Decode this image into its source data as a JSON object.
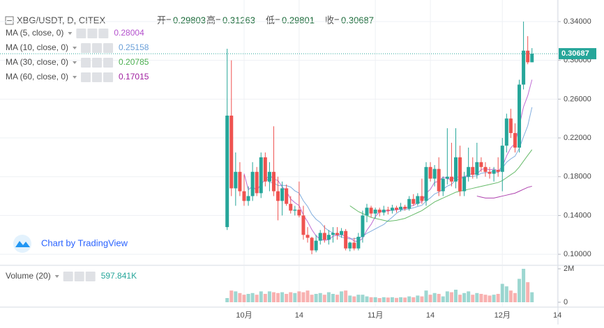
{
  "chart_data": {
    "type": "candlestick",
    "title": "XBG/USDT, D, CITEX",
    "ohlc_labels": [
      "开=",
      "高=",
      "低=",
      "收="
    ],
    "watermark": "Chart by TradingView",
    "up_color": "#26a69a",
    "down_color": "#ef5350",
    "grid": true,
    "categories": [
      null,
      null,
      null,
      null,
      "10月",
      null,
      null,
      null,
      null,
      null,
      null,
      null,
      null,
      null,
      null,
      null,
      null,
      "14",
      null,
      null,
      null,
      null,
      null,
      null,
      null,
      null,
      null,
      null,
      null,
      null,
      null,
      null,
      null,
      null,
      null,
      "11月",
      null,
      null,
      null,
      null,
      null,
      null,
      null,
      null,
      null,
      null,
      null,
      null,
      "14",
      null,
      null,
      null,
      null,
      null,
      null,
      null,
      null,
      null,
      null,
      null,
      null,
      null,
      null,
      null,
      null,
      "12月",
      null,
      null,
      null,
      null,
      null,
      null,
      null,
      null,
      null,
      null,
      null,
      null,
      "14"
    ],
    "open": [
      0.128,
      0.243,
      0.168,
      0.185,
      0.165,
      0.155,
      0.16,
      0.185,
      0.163,
      0.2,
      0.175,
      0.185,
      0.165,
      0.155,
      0.168,
      0.152,
      0.145,
      0.146,
      0.14,
      0.12,
      0.117,
      0.104,
      0.114,
      0.122,
      0.115,
      0.12,
      0.122,
      0.12,
      0.124,
      0.106,
      0.112,
      0.106,
      0.118,
      0.14,
      0.148,
      0.142,
      0.146,
      0.143,
      0.146,
      0.145,
      0.148,
      0.146,
      0.149,
      0.147,
      0.157,
      0.152,
      0.16,
      0.155,
      0.19,
      0.178,
      0.188,
      0.165,
      0.178,
      0.18,
      0.175,
      0.2,
      0.165,
      0.18,
      0.19,
      0.182,
      0.195,
      0.19,
      0.185,
      0.183,
      0.187,
      0.185,
      0.212,
      0.24,
      0.225,
      0.21,
      0.275,
      0.31,
      0.29803,
      null,
      null,
      null,
      null,
      null,
      null
    ],
    "high": [
      0.312,
      0.3,
      0.205,
      0.195,
      0.182,
      0.17,
      0.195,
      0.19,
      0.205,
      0.205,
      0.195,
      0.232,
      0.18,
      0.175,
      0.172,
      0.16,
      0.15,
      0.175,
      0.15,
      0.128,
      0.118,
      0.12,
      0.125,
      0.13,
      0.125,
      0.128,
      0.128,
      0.127,
      0.126,
      0.113,
      0.117,
      0.122,
      0.145,
      0.152,
      0.15,
      0.148,
      0.148,
      0.15,
      0.149,
      0.151,
      0.15,
      0.153,
      0.151,
      0.16,
      0.162,
      0.163,
      0.178,
      0.195,
      0.195,
      0.192,
      0.2,
      0.18,
      0.23,
      0.215,
      0.23,
      0.212,
      0.185,
      0.21,
      0.2,
      0.215,
      0.2,
      0.195,
      0.19,
      0.19,
      0.2,
      0.22,
      0.245,
      0.25,
      0.235,
      0.28,
      0.34,
      0.325,
      0.31263,
      null,
      null,
      null,
      null,
      null,
      null
    ],
    "low": [
      0.125,
      0.16,
      0.15,
      0.16,
      0.15,
      0.15,
      0.155,
      0.16,
      0.158,
      0.17,
      0.165,
      0.16,
      0.135,
      0.14,
      0.15,
      0.142,
      0.14,
      0.138,
      0.115,
      0.112,
      0.1,
      0.102,
      0.11,
      0.112,
      0.11,
      0.112,
      0.115,
      0.117,
      0.104,
      0.103,
      0.104,
      0.104,
      0.112,
      0.133,
      0.138,
      0.137,
      0.139,
      0.14,
      0.141,
      0.142,
      0.143,
      0.144,
      0.145,
      0.145,
      0.15,
      0.15,
      0.152,
      0.15,
      0.175,
      0.17,
      0.16,
      0.16,
      0.172,
      0.17,
      0.168,
      0.16,
      0.16,
      0.175,
      0.178,
      0.178,
      0.185,
      0.18,
      0.178,
      0.175,
      0.18,
      0.165,
      0.205,
      0.22,
      0.205,
      0.205,
      0.27,
      0.296,
      0.29801,
      null,
      null,
      null,
      null,
      null,
      null
    ],
    "close": [
      0.243,
      0.168,
      0.185,
      0.165,
      0.155,
      0.16,
      0.185,
      0.163,
      0.2,
      0.175,
      0.185,
      0.165,
      0.155,
      0.168,
      0.152,
      0.145,
      0.146,
      0.14,
      0.12,
      0.117,
      0.104,
      0.114,
      0.122,
      0.115,
      0.12,
      0.122,
      0.12,
      0.124,
      0.106,
      0.112,
      0.106,
      0.118,
      0.14,
      0.148,
      0.142,
      0.146,
      0.143,
      0.146,
      0.145,
      0.148,
      0.146,
      0.149,
      0.147,
      0.157,
      0.152,
      0.16,
      0.155,
      0.19,
      0.178,
      0.188,
      0.165,
      0.178,
      0.18,
      0.175,
      0.2,
      0.165,
      0.18,
      0.19,
      0.182,
      0.195,
      0.19,
      0.185,
      0.183,
      0.187,
      0.185,
      0.212,
      0.24,
      0.225,
      0.21,
      0.275,
      0.31,
      0.298,
      0.30687,
      null,
      null,
      null,
      null,
      null,
      null
    ],
    "ylim": [
      0.0893,
      0.3565
    ],
    "yticks": [
      {
        "value": 0.1,
        "label": "0.10000"
      },
      {
        "value": 0.14,
        "label": "0.14000"
      },
      {
        "value": 0.18,
        "label": "0.18000"
      },
      {
        "value": 0.22,
        "label": "0.22000"
      },
      {
        "value": 0.26,
        "label": "0.26000"
      },
      {
        "value": 0.3,
        "label": "0.30000"
      },
      {
        "value": 0.34,
        "label": "0.34000"
      }
    ],
    "series": [
      {
        "name": "MA (5, close, 0)",
        "color": "#b452cd",
        "values": [
          null,
          null,
          null,
          null,
          0.1832,
          0.1666,
          0.17,
          0.1656,
          0.1726,
          0.1766,
          0.1816,
          0.1776,
          0.176,
          0.1696,
          0.165,
          0.157,
          0.1532,
          0.1502,
          0.1406,
          0.1336,
          0.1254,
          0.119,
          0.1154,
          0.1144,
          0.115,
          0.1186,
          0.1198,
          0.1202,
          0.1184,
          0.1168,
          0.1136,
          0.1132,
          0.1164,
          0.1248,
          0.1308,
          0.1388,
          0.1438,
          0.145,
          0.1444,
          0.1456,
          0.1456,
          0.1468,
          0.147,
          0.1494,
          0.1502,
          0.153,
          0.1542,
          0.1628,
          0.167,
          0.1742,
          0.1752,
          0.1798,
          0.1778,
          0.1772,
          0.1796,
          0.1796,
          0.18,
          0.182,
          0.1834,
          0.1824,
          0.1874,
          0.1884,
          0.187,
          0.188,
          0.186,
          0.1904,
          0.2014,
          0.2098,
          0.2144,
          0.2324,
          0.252,
          0.2636,
          0.28004,
          null,
          null,
          null,
          null,
          null,
          null
        ]
      },
      {
        "name": "MA (10, close, 0)",
        "color": "#6a9fd8",
        "values": [
          null,
          null,
          null,
          null,
          null,
          null,
          null,
          null,
          null,
          0.1799,
          0.1741,
          0.1738,
          0.1708,
          0.1711,
          0.1708,
          0.1693,
          0.1654,
          0.1631,
          0.1551,
          0.1493,
          0.1412,
          0.1361,
          0.1328,
          0.1275,
          0.1243,
          0.122,
          0.1194,
          0.1178,
          0.1164,
          0.1159,
          0.1161,
          0.1165,
          0.1183,
          0.1216,
          0.1238,
          0.1262,
          0.1285,
          0.1307,
          0.1346,
          0.1382,
          0.1422,
          0.1453,
          0.146,
          0.1469,
          0.1479,
          0.1493,
          0.1505,
          0.1549,
          0.1582,
          0.1622,
          0.1641,
          0.167,
          0.1703,
          0.1721,
          0.1769,
          0.1774,
          0.1799,
          0.1799,
          0.1803,
          0.181,
          0.1835,
          0.1842,
          0.1845,
          0.1857,
          0.1842,
          0.1889,
          0.1949,
          0.1984,
          0.2012,
          0.2092,
          0.2212,
          0.2325,
          0.25158,
          null,
          null,
          null,
          null,
          null,
          null
        ]
      },
      {
        "name": "MA (30, close, 0)",
        "color": "#4caf50",
        "values": [
          null,
          null,
          null,
          null,
          null,
          null,
          null,
          null,
          null,
          null,
          null,
          null,
          null,
          null,
          null,
          null,
          null,
          null,
          null,
          null,
          null,
          null,
          null,
          null,
          null,
          null,
          null,
          null,
          null,
          0.15,
          0.147,
          0.144,
          0.142,
          0.14,
          0.138,
          0.137,
          0.136,
          0.135,
          0.134,
          0.1345,
          0.135,
          0.136,
          0.137,
          0.139,
          0.141,
          0.143,
          0.145,
          0.148,
          0.151,
          0.154,
          0.156,
          0.158,
          0.16,
          0.162,
          0.164,
          0.165,
          0.166,
          0.167,
          0.168,
          0.169,
          0.17,
          0.171,
          0.172,
          0.173,
          0.174,
          0.176,
          0.179,
          0.182,
          0.185,
          0.19,
          0.196,
          0.202,
          0.20785,
          null,
          null,
          null,
          null,
          null,
          null
        ]
      },
      {
        "name": "MA (60, close, 0)",
        "color": "#a020a0",
        "values": [
          null,
          null,
          null,
          null,
          null,
          null,
          null,
          null,
          null,
          null,
          null,
          null,
          null,
          null,
          null,
          null,
          null,
          null,
          null,
          null,
          null,
          null,
          null,
          null,
          null,
          null,
          null,
          null,
          null,
          null,
          null,
          null,
          null,
          null,
          null,
          null,
          null,
          null,
          null,
          null,
          null,
          null,
          null,
          null,
          null,
          null,
          null,
          null,
          null,
          null,
          null,
          null,
          null,
          null,
          null,
          null,
          null,
          null,
          null,
          0.16,
          0.159,
          0.158,
          0.158,
          0.158,
          0.159,
          0.16,
          0.161,
          0.162,
          0.163,
          0.165,
          0.167,
          0.169,
          0.17015,
          null,
          null,
          null,
          null,
          null,
          null
        ]
      }
    ],
    "volume": {
      "name": "Volume (20)",
      "values": [
        250000,
        700000,
        650000,
        550000,
        450000,
        500000,
        550000,
        450000,
        650000,
        500000,
        650000,
        600000,
        550000,
        600000,
        500000,
        600000,
        550000,
        650000,
        600000,
        700000,
        450000,
        500000,
        550000,
        450000,
        600000,
        500000,
        450000,
        650000,
        700000,
        400000,
        350000,
        450000,
        450000,
        350000,
        300000,
        300000,
        250000,
        300000,
        280000,
        300000,
        260000,
        300000,
        280000,
        350000,
        300000,
        400000,
        350000,
        700000,
        450000,
        550000,
        500000,
        350000,
        650000,
        600000,
        750000,
        450000,
        550000,
        650000,
        450000,
        550000,
        500000,
        450000,
        400000,
        450000,
        500000,
        1100000,
        950000,
        700000,
        550000,
        1400000,
        2000000,
        1200000,
        597841,
        null,
        null,
        null,
        null,
        null,
        null
      ],
      "value_labels": [
        null,
        null,
        null,
        null,
        null,
        null,
        null,
        null,
        null,
        null,
        null,
        null,
        null,
        null,
        null,
        null,
        null,
        null,
        null,
        null,
        null,
        null,
        null,
        null,
        null,
        null,
        null,
        null,
        null,
        null,
        null,
        null,
        null,
        null,
        null,
        null,
        null,
        null,
        null,
        null,
        null,
        null,
        null,
        null,
        null,
        null,
        null,
        null,
        null,
        null,
        null,
        null,
        null,
        null,
        null,
        null,
        null,
        null,
        null,
        null,
        null,
        null,
        null,
        null,
        null,
        null,
        null,
        null,
        null,
        null,
        null,
        null,
        "597.841K",
        null,
        null,
        null,
        null,
        null,
        null
      ],
      "ylim": [
        0,
        2125000
      ],
      "yticks": [
        0,
        {
          "value": 2000000,
          "label": "2M"
        }
      ]
    }
  }
}
